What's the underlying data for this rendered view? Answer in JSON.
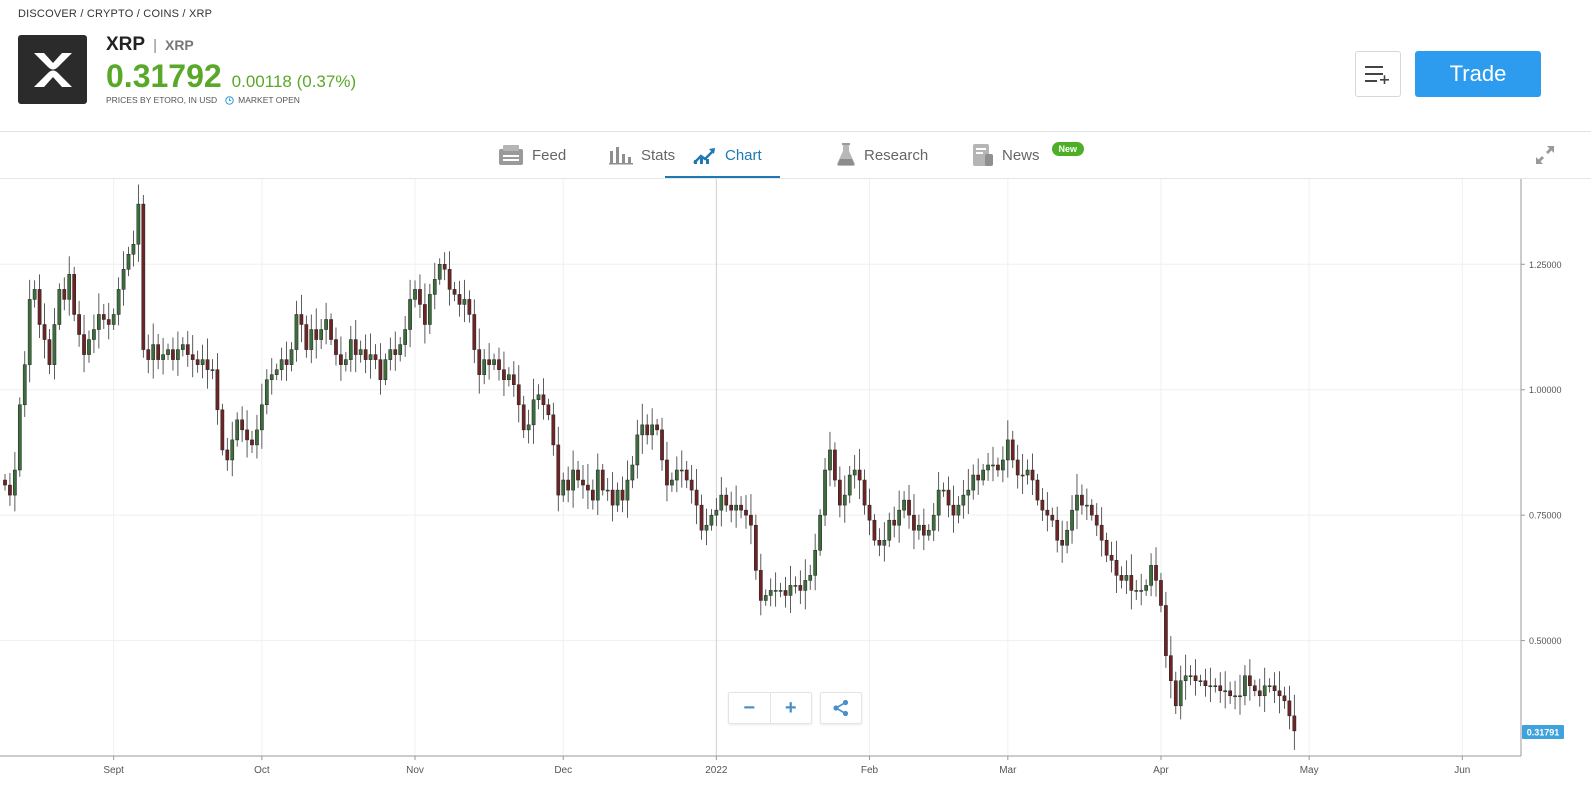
{
  "breadcrumb": {
    "items": [
      "DISCOVER",
      "CRYPTO",
      "COINS",
      "XRP"
    ],
    "separator": "/"
  },
  "instrument": {
    "name": "XRP",
    "separator": "|",
    "ticker": "XRP",
    "price": "0.31792",
    "change": "0.00118 (0.37%)",
    "price_source": "PRICES BY ETORO, IN USD",
    "market_status": "MARKET OPEN",
    "logo_icon": "xrp-logo-icon"
  },
  "actions": {
    "watchlist_icon": "add-to-list-icon",
    "trade_label": "Trade"
  },
  "tabs": [
    {
      "label": "Feed",
      "icon": "feed-icon",
      "active": false
    },
    {
      "label": "Stats",
      "icon": "stats-icon",
      "active": false
    },
    {
      "label": "Chart",
      "icon": "chart-icon",
      "active": true
    },
    {
      "label": "Research",
      "icon": "research-flask-icon",
      "active": false
    },
    {
      "label": "News",
      "icon": "news-icon",
      "active": false,
      "badge": "New"
    }
  ],
  "colors": {
    "up": "#3c6e3c",
    "down": "#6e2424",
    "accent": "#2d9cef",
    "price_green": "#5aa829",
    "tab_active": "#1f78b4"
  },
  "chart_controls": {
    "zoom_out": "−",
    "zoom_in": "+",
    "share_icon": "share-icon",
    "expand_icon": "expand-icon"
  },
  "chart_data": {
    "type": "candlestick",
    "x_ticks": [
      {
        "label": "Sept",
        "index": 22
      },
      {
        "label": "Oct",
        "index": 52
      },
      {
        "label": "Nov",
        "index": 83
      },
      {
        "label": "Dec",
        "index": 113
      },
      {
        "label": "2022",
        "index": 144
      },
      {
        "label": "Feb",
        "index": 175
      },
      {
        "label": "Mar",
        "index": 203
      },
      {
        "label": "Apr",
        "index": 234
      },
      {
        "label": "May",
        "index": 264
      },
      {
        "label": "Jun",
        "index": 295
      }
    ],
    "y_ticks": [
      "1.25000",
      "1.00000",
      "0.75000",
      "0.50000"
    ],
    "ylim": [
      0.27,
      1.42
    ],
    "current_value_label": "0.31791",
    "grid": true,
    "closes": [
      0.81,
      0.79,
      0.84,
      0.97,
      1.05,
      1.18,
      1.2,
      1.13,
      1.1,
      1.05,
      1.13,
      1.2,
      1.18,
      1.23,
      1.15,
      1.11,
      1.07,
      1.1,
      1.12,
      1.15,
      1.14,
      1.13,
      1.15,
      1.2,
      1.24,
      1.27,
      1.29,
      1.37,
      1.08,
      1.06,
      1.09,
      1.06,
      1.07,
      1.08,
      1.06,
      1.08,
      1.09,
      1.07,
      1.06,
      1.05,
      1.06,
      1.04,
      1.04,
      0.96,
      0.88,
      0.86,
      0.9,
      0.94,
      0.92,
      0.9,
      0.89,
      0.92,
      0.97,
      1.02,
      1.03,
      1.04,
      1.06,
      1.05,
      1.08,
      1.15,
      1.13,
      1.08,
      1.12,
      1.1,
      1.12,
      1.14,
      1.1,
      1.07,
      1.05,
      1.06,
      1.1,
      1.07,
      1.08,
      1.06,
      1.07,
      1.06,
      1.02,
      1.06,
      1.08,
      1.07,
      1.09,
      1.12,
      1.18,
      1.2,
      1.17,
      1.13,
      1.19,
      1.22,
      1.25,
      1.24,
      1.2,
      1.19,
      1.17,
      1.18,
      1.15,
      1.08,
      1.03,
      1.06,
      1.05,
      1.06,
      1.04,
      1.02,
      1.03,
      1.01,
      0.97,
      0.92,
      0.93,
      0.98,
      0.99,
      0.97,
      0.95,
      0.89,
      0.79,
      0.82,
      0.8,
      0.84,
      0.82,
      0.81,
      0.8,
      0.78,
      0.84,
      0.8,
      0.8,
      0.77,
      0.8,
      0.78,
      0.82,
      0.85,
      0.91,
      0.93,
      0.91,
      0.93,
      0.92,
      0.86,
      0.81,
      0.82,
      0.84,
      0.84,
      0.82,
      0.8,
      0.77,
      0.72,
      0.73,
      0.75,
      0.76,
      0.79,
      0.77,
      0.76,
      0.77,
      0.76,
      0.75,
      0.73,
      0.64,
      0.58,
      0.59,
      0.6,
      0.6,
      0.6,
      0.59,
      0.61,
      0.61,
      0.6,
      0.62,
      0.63,
      0.68,
      0.75,
      0.84,
      0.88,
      0.82,
      0.77,
      0.79,
      0.83,
      0.84,
      0.82,
      0.77,
      0.74,
      0.7,
      0.69,
      0.7,
      0.74,
      0.73,
      0.76,
      0.78,
      0.75,
      0.72,
      0.73,
      0.71,
      0.72,
      0.75,
      0.8,
      0.8,
      0.77,
      0.75,
      0.77,
      0.79,
      0.8,
      0.83,
      0.82,
      0.84,
      0.85,
      0.85,
      0.84,
      0.86,
      0.9,
      0.86,
      0.83,
      0.83,
      0.84,
      0.82,
      0.78,
      0.76,
      0.75,
      0.74,
      0.7,
      0.69,
      0.72,
      0.76,
      0.79,
      0.77,
      0.77,
      0.75,
      0.73,
      0.7,
      0.67,
      0.66,
      0.63,
      0.62,
      0.63,
      0.6,
      0.6,
      0.6,
      0.61,
      0.65,
      0.62,
      0.57,
      0.47,
      0.42,
      0.37,
      0.42,
      0.43,
      0.43,
      0.42,
      0.42,
      0.41,
      0.41,
      0.41,
      0.4,
      0.4,
      0.39,
      0.39,
      0.39,
      0.43,
      0.41,
      0.4,
      0.39,
      0.41,
      0.41,
      0.4,
      0.39,
      0.38,
      0.35,
      0.32
    ]
  }
}
